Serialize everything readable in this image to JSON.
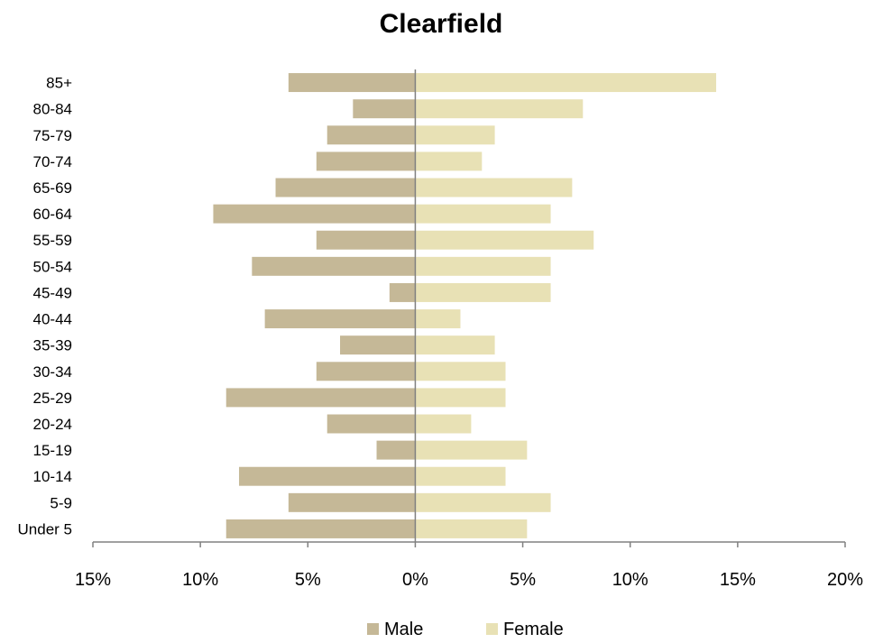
{
  "chart_data": {
    "type": "bar",
    "orientation": "horizontal",
    "title": "Clearfield",
    "categories": [
      "85+",
      "80-84",
      "75-79",
      "70-74",
      "65-69",
      "60-64",
      "55-59",
      "50-54",
      "45-49",
      "40-44",
      "35-39",
      "30-34",
      "25-29",
      "20-24",
      "15-19",
      "10-14",
      "5-9",
      "Under 5"
    ],
    "series": [
      {
        "name": "Male",
        "color": "#c5b897",
        "values": [
          -5.9,
          -2.9,
          -4.1,
          -4.6,
          -6.5,
          -9.4,
          -4.6,
          -7.6,
          -1.2,
          -7.0,
          -3.5,
          -4.6,
          -8.8,
          -4.1,
          -1.8,
          -8.2,
          -5.9,
          -8.8
        ]
      },
      {
        "name": "Female",
        "color": "#e8e1b5",
        "values": [
          14.0,
          7.8,
          3.7,
          3.1,
          7.3,
          6.3,
          8.3,
          6.3,
          6.3,
          2.1,
          3.7,
          4.2,
          4.2,
          2.6,
          5.2,
          4.2,
          6.3,
          5.2
        ]
      }
    ],
    "xlim": [
      -15,
      20
    ],
    "xticks": [
      -15,
      -10,
      -5,
      0,
      5,
      10,
      15,
      20
    ],
    "xtick_labels": [
      "15%",
      "10%",
      "5%",
      "0%",
      "5%",
      "10%",
      "15%",
      "20%"
    ],
    "grid": false,
    "legend": {
      "position": "bottom",
      "entries": [
        "Male",
        "Female"
      ]
    }
  }
}
